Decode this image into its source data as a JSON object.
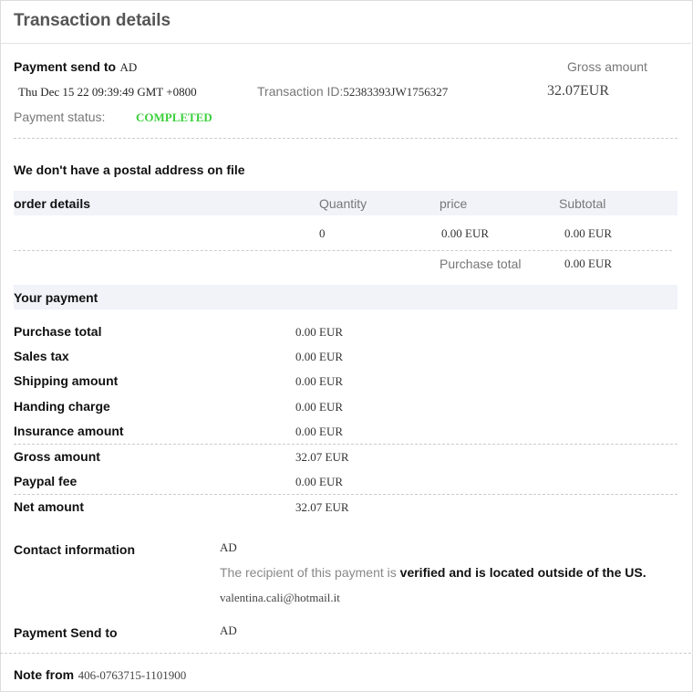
{
  "header": {
    "title": "Transaction details"
  },
  "summary": {
    "send_to_label": "Payment send to",
    "send_to_value": "AD",
    "date": "Thu Dec 15 22 09:39:49 GMT +0800",
    "transaction_id_label": "Transaction ID:",
    "transaction_id": "52383393JW1756327",
    "gross_label": "Gross amount",
    "gross_value": "32.07EUR",
    "status_label": "Payment status:",
    "status_value": "COMPLETED",
    "status_color": "#3ccf3c"
  },
  "postal_notice": "We don't have a postal address on file",
  "order": {
    "headers": [
      "order details",
      "Quantity",
      "price",
      "Subtotal"
    ],
    "row": {
      "quantity": "0",
      "price": "0.00 EUR",
      "subtotal": "0.00 EUR"
    },
    "purchase_total_label": "Purchase total",
    "purchase_total_value": "0.00 EUR"
  },
  "payment": {
    "title": "Your payment",
    "items": [
      {
        "label": "Purchase total",
        "value": "0.00 EUR"
      },
      {
        "label": "Sales tax",
        "value": "0.00 EUR"
      },
      {
        "label": "Shipping amount",
        "value": "0.00 EUR"
      },
      {
        "label": "Handing charge",
        "value": "0.00 EUR"
      },
      {
        "label": "Insurance amount",
        "value": "0.00 EUR"
      },
      {
        "label": "Gross amount",
        "value": "32.07 EUR"
      },
      {
        "label": "Paypal fee",
        "value": "0.00 EUR"
      },
      {
        "label": "Net amount",
        "value": "32.07 EUR"
      }
    ]
  },
  "contact": {
    "label": "Contact information",
    "name": "AD",
    "notice_prefix": "The recipient of this payment is ",
    "notice_bold": "verified and is located outside of the US.",
    "email": "valentina.cali@hotmail.it",
    "send_to_label": "Payment Send to",
    "send_to_value": "AD"
  },
  "note": {
    "label": "Note from",
    "value": "406-0763715-1101900"
  }
}
